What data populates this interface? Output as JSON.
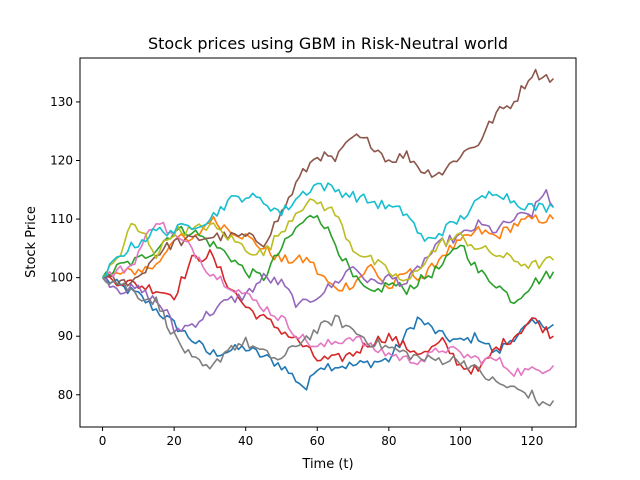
{
  "chart_data": {
    "type": "line",
    "title": "Stock prices using GBM in Risk-Neutral world",
    "xlabel": "Time (t)",
    "ylabel": "Stock Price",
    "xlim": [
      -6.3,
      132.3
    ],
    "ylim": [
      74.5,
      137.5
    ],
    "xticks": [
      0,
      20,
      40,
      60,
      80,
      100,
      120
    ],
    "yticks": [
      80,
      90,
      100,
      110,
      120,
      130
    ],
    "grid": false,
    "legend": "none",
    "series_keypoints": [
      {
        "color": "#1f77b4",
        "points": [
          [
            0,
            100
          ],
          [
            10,
            97
          ],
          [
            20,
            92
          ],
          [
            30,
            87
          ],
          [
            40,
            88
          ],
          [
            50,
            85
          ],
          [
            57,
            81
          ],
          [
            60,
            85
          ],
          [
            70,
            85
          ],
          [
            80,
            86
          ],
          [
            88,
            93
          ],
          [
            95,
            90
          ],
          [
            100,
            89
          ],
          [
            105,
            90
          ],
          [
            110,
            87
          ],
          [
            115,
            90
          ],
          [
            120,
            92
          ],
          [
            126,
            92
          ]
        ]
      },
      {
        "color": "#ff7f0e",
        "points": [
          [
            0,
            100
          ],
          [
            8,
            101
          ],
          [
            15,
            102
          ],
          [
            20,
            107
          ],
          [
            25,
            106
          ],
          [
            30,
            110
          ],
          [
            40,
            107
          ],
          [
            50,
            103
          ],
          [
            58,
            103
          ],
          [
            60,
            101
          ],
          [
            65,
            98
          ],
          [
            70,
            99
          ],
          [
            75,
            102
          ],
          [
            80,
            98
          ],
          [
            85,
            101
          ],
          [
            90,
            100
          ],
          [
            95,
            104
          ],
          [
            100,
            106
          ],
          [
            105,
            108
          ],
          [
            110,
            107
          ],
          [
            115,
            109
          ],
          [
            120,
            110
          ],
          [
            126,
            110
          ]
        ]
      },
      {
        "color": "#2ca02c",
        "points": [
          [
            0,
            100
          ],
          [
            5,
            102
          ],
          [
            10,
            103
          ],
          [
            15,
            105
          ],
          [
            20,
            108
          ],
          [
            25,
            108
          ],
          [
            30,
            106
          ],
          [
            35,
            104
          ],
          [
            40,
            101
          ],
          [
            45,
            100
          ],
          [
            50,
            105
          ],
          [
            55,
            109
          ],
          [
            60,
            111
          ],
          [
            65,
            106
          ],
          [
            70,
            100
          ],
          [
            75,
            97
          ],
          [
            80,
            99
          ],
          [
            85,
            98
          ],
          [
            90,
            100
          ],
          [
            95,
            102
          ],
          [
            100,
            106
          ],
          [
            105,
            101
          ],
          [
            110,
            99
          ],
          [
            115,
            96
          ],
          [
            120,
            99
          ],
          [
            126,
            101
          ]
        ]
      },
      {
        "color": "#d62728",
        "points": [
          [
            0,
            100
          ],
          [
            8,
            99
          ],
          [
            15,
            98
          ],
          [
            20,
            97
          ],
          [
            25,
            103
          ],
          [
            30,
            104
          ],
          [
            35,
            99
          ],
          [
            40,
            95
          ],
          [
            45,
            93
          ],
          [
            50,
            91
          ],
          [
            55,
            89
          ],
          [
            60,
            86
          ],
          [
            65,
            86
          ],
          [
            70,
            87
          ],
          [
            75,
            89
          ],
          [
            80,
            90
          ],
          [
            85,
            88
          ],
          [
            90,
            87
          ],
          [
            95,
            89
          ],
          [
            100,
            85
          ],
          [
            105,
            84
          ],
          [
            110,
            88
          ],
          [
            115,
            90
          ],
          [
            120,
            93
          ],
          [
            126,
            90
          ]
        ]
      },
      {
        "color": "#9467bd",
        "points": [
          [
            0,
            100
          ],
          [
            5,
            98
          ],
          [
            10,
            98
          ],
          [
            15,
            96
          ],
          [
            18,
            94
          ],
          [
            20,
            91
          ],
          [
            25,
            92
          ],
          [
            30,
            94
          ],
          [
            35,
            96
          ],
          [
            40,
            97
          ],
          [
            45,
            100
          ],
          [
            50,
            99
          ],
          [
            55,
            95
          ],
          [
            60,
            97
          ],
          [
            65,
            99
          ],
          [
            70,
            102
          ],
          [
            75,
            99
          ],
          [
            80,
            100
          ],
          [
            85,
            99
          ],
          [
            90,
            103
          ],
          [
            95,
            106
          ],
          [
            100,
            107
          ],
          [
            105,
            109
          ],
          [
            110,
            108
          ],
          [
            115,
            110
          ],
          [
            120,
            111
          ],
          [
            124,
            115
          ],
          [
            126,
            112
          ]
        ]
      },
      {
        "color": "#8c564b",
        "points": [
          [
            0,
            100
          ],
          [
            5,
            99
          ],
          [
            10,
            100
          ],
          [
            15,
            104
          ],
          [
            20,
            106
          ],
          [
            30,
            107
          ],
          [
            40,
            107
          ],
          [
            45,
            106
          ],
          [
            50,
            111
          ],
          [
            55,
            117
          ],
          [
            60,
            121
          ],
          [
            65,
            120
          ],
          [
            70,
            124
          ],
          [
            75,
            123
          ],
          [
            80,
            120
          ],
          [
            85,
            121
          ],
          [
            90,
            118
          ],
          [
            95,
            118
          ],
          [
            100,
            121
          ],
          [
            105,
            123
          ],
          [
            110,
            128
          ],
          [
            115,
            130
          ],
          [
            118,
            133
          ],
          [
            120,
            135
          ],
          [
            126,
            134
          ]
        ]
      },
      {
        "color": "#e377c2",
        "points": [
          [
            0,
            100
          ],
          [
            8,
            102
          ],
          [
            15,
            110
          ],
          [
            20,
            107
          ],
          [
            25,
            105
          ],
          [
            30,
            101
          ],
          [
            35,
            99
          ],
          [
            40,
            97
          ],
          [
            45,
            95
          ],
          [
            50,
            93
          ],
          [
            55,
            90
          ],
          [
            60,
            88
          ],
          [
            65,
            89
          ],
          [
            70,
            90
          ],
          [
            75,
            88
          ],
          [
            80,
            87
          ],
          [
            85,
            86
          ],
          [
            90,
            86
          ],
          [
            95,
            88
          ],
          [
            100,
            87
          ],
          [
            105,
            86
          ],
          [
            110,
            86
          ],
          [
            115,
            84
          ],
          [
            120,
            84
          ],
          [
            126,
            85
          ]
        ]
      },
      {
        "color": "#7f7f7f",
        "points": [
          [
            0,
            100
          ],
          [
            5,
            99
          ],
          [
            10,
            97
          ],
          [
            15,
            96
          ],
          [
            20,
            90
          ],
          [
            25,
            86
          ],
          [
            30,
            84
          ],
          [
            35,
            88
          ],
          [
            40,
            89
          ],
          [
            45,
            87
          ],
          [
            50,
            86
          ],
          [
            55,
            89
          ],
          [
            60,
            91
          ],
          [
            65,
            93
          ],
          [
            70,
            91
          ],
          [
            75,
            89
          ],
          [
            80,
            88
          ],
          [
            85,
            87
          ],
          [
            90,
            86
          ],
          [
            95,
            86
          ],
          [
            100,
            86
          ],
          [
            105,
            84
          ],
          [
            110,
            82
          ],
          [
            115,
            81
          ],
          [
            120,
            80
          ],
          [
            123,
            78
          ],
          [
            126,
            79
          ]
        ]
      },
      {
        "color": "#bcbd22",
        "points": [
          [
            0,
            100
          ],
          [
            5,
            104
          ],
          [
            8,
            109
          ],
          [
            12,
            107
          ],
          [
            15,
            104
          ],
          [
            20,
            108
          ],
          [
            25,
            108
          ],
          [
            30,
            109
          ],
          [
            35,
            107
          ],
          [
            40,
            105
          ],
          [
            45,
            104
          ],
          [
            50,
            108
          ],
          [
            55,
            112
          ],
          [
            60,
            113
          ],
          [
            65,
            111
          ],
          [
            70,
            105
          ],
          [
            75,
            103
          ],
          [
            80,
            101
          ],
          [
            85,
            99
          ],
          [
            90,
            103
          ],
          [
            95,
            106
          ],
          [
            100,
            107
          ],
          [
            105,
            105
          ],
          [
            110,
            104
          ],
          [
            115,
            103
          ],
          [
            120,
            102
          ],
          [
            126,
            103
          ]
        ]
      },
      {
        "color": "#17becf",
        "points": [
          [
            0,
            100
          ],
          [
            5,
            104
          ],
          [
            10,
            106
          ],
          [
            15,
            108
          ],
          [
            20,
            108
          ],
          [
            25,
            109
          ],
          [
            30,
            110
          ],
          [
            35,
            113
          ],
          [
            40,
            114
          ],
          [
            45,
            113
          ],
          [
            50,
            111
          ],
          [
            55,
            114
          ],
          [
            60,
            116
          ],
          [
            65,
            115
          ],
          [
            70,
            114
          ],
          [
            75,
            113
          ],
          [
            80,
            112
          ],
          [
            85,
            111
          ],
          [
            90,
            106
          ],
          [
            95,
            108
          ],
          [
            100,
            110
          ],
          [
            105,
            113
          ],
          [
            110,
            115
          ],
          [
            115,
            113
          ],
          [
            120,
            112
          ],
          [
            126,
            112
          ]
        ]
      }
    ]
  }
}
